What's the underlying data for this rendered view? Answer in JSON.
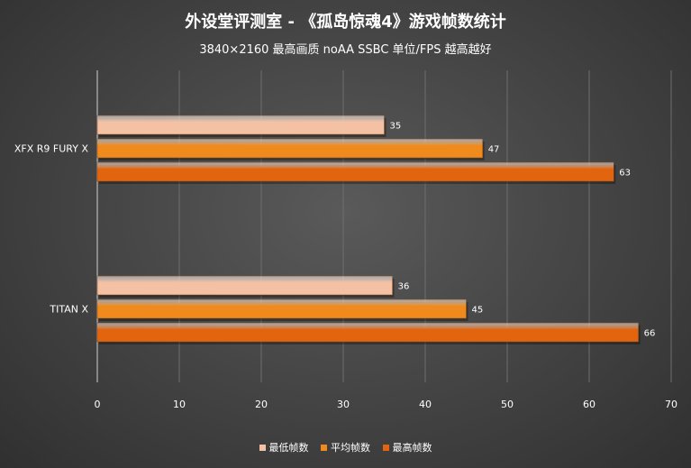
{
  "chart_data": {
    "type": "bar",
    "orientation": "horizontal",
    "title": "外设堂评测室 - 《孤岛惊魂4》游戏帧数统计",
    "subtitle": "3840×2160   最高画质  noAA  SSBC   单位/FPS    越高越好",
    "categories": [
      "XFX R9 FURY X",
      "TITAN X"
    ],
    "series": [
      {
        "name": "最低帧数",
        "values": [
          35,
          36
        ],
        "color": "#f4c1a4"
      },
      {
        "name": "平均帧数",
        "values": [
          47,
          45
        ],
        "color": "#f08a1c"
      },
      {
        "name": "最高帧数",
        "values": [
          63,
          66
        ],
        "color": "#e2640f"
      }
    ],
    "xlim": [
      0,
      70
    ],
    "x_ticks": [
      0,
      10,
      20,
      30,
      40,
      50,
      60,
      70
    ],
    "grid": true,
    "legend_position": "bottom"
  }
}
